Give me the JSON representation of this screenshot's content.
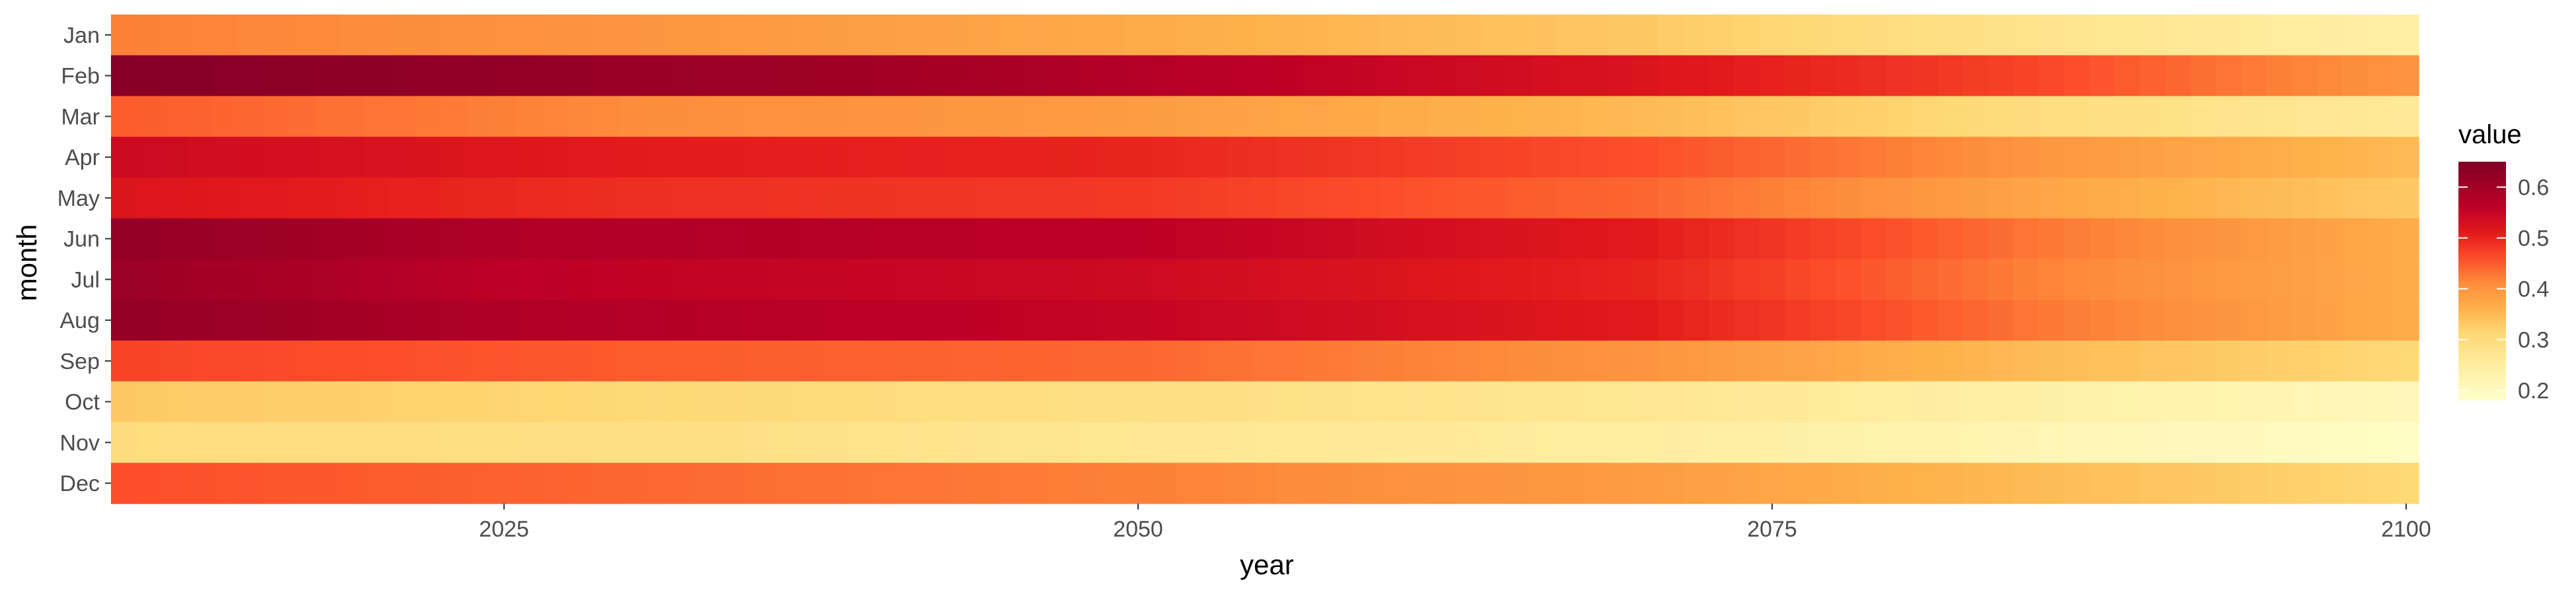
{
  "chart_data": {
    "type": "heatmap",
    "title": "",
    "xlabel": "year",
    "ylabel": "month",
    "x_start": 2010,
    "x_end": 2100,
    "xlim": [
      2009.5,
      2100.5
    ],
    "x_ticks": [
      2025,
      2050,
      2075,
      2100
    ],
    "months": [
      "Jan",
      "Feb",
      "Mar",
      "Apr",
      "May",
      "Jun",
      "Jul",
      "Aug",
      "Sep",
      "Oct",
      "Nov",
      "Dec"
    ],
    "row_value_profiles": [
      {
        "month": "Jan",
        "points": [
          [
            2010,
            0.42
          ],
          [
            2030,
            0.4
          ],
          [
            2050,
            0.37
          ],
          [
            2070,
            0.33
          ],
          [
            2085,
            0.28
          ],
          [
            2100,
            0.24
          ]
        ]
      },
      {
        "month": "Feb",
        "points": [
          [
            2010,
            0.64
          ],
          [
            2025,
            0.62
          ],
          [
            2040,
            0.6
          ],
          [
            2055,
            0.56
          ],
          [
            2070,
            0.52
          ],
          [
            2085,
            0.47
          ],
          [
            2095,
            0.42
          ],
          [
            2100,
            0.4
          ]
        ]
      },
      {
        "month": "Mar",
        "points": [
          [
            2010,
            0.45
          ],
          [
            2030,
            0.41
          ],
          [
            2050,
            0.39
          ],
          [
            2070,
            0.35
          ],
          [
            2085,
            0.3
          ],
          [
            2100,
            0.26
          ]
        ]
      },
      {
        "month": "Apr",
        "points": [
          [
            2010,
            0.54
          ],
          [
            2030,
            0.51
          ],
          [
            2050,
            0.5
          ],
          [
            2070,
            0.46
          ],
          [
            2085,
            0.4
          ],
          [
            2100,
            0.35
          ]
        ]
      },
      {
        "month": "May",
        "points": [
          [
            2010,
            0.52
          ],
          [
            2030,
            0.49
          ],
          [
            2050,
            0.48
          ],
          [
            2070,
            0.44
          ],
          [
            2085,
            0.38
          ],
          [
            2100,
            0.33
          ]
        ]
      },
      {
        "month": "Jun",
        "points": [
          [
            2010,
            0.62
          ],
          [
            2025,
            0.58
          ],
          [
            2050,
            0.56
          ],
          [
            2070,
            0.51
          ],
          [
            2085,
            0.43
          ],
          [
            2100,
            0.37
          ]
        ]
      },
      {
        "month": "Jul",
        "points": [
          [
            2010,
            0.61
          ],
          [
            2025,
            0.56
          ],
          [
            2050,
            0.54
          ],
          [
            2070,
            0.5
          ],
          [
            2085,
            0.42
          ],
          [
            2100,
            0.37
          ]
        ]
      },
      {
        "month": "Aug",
        "points": [
          [
            2010,
            0.62
          ],
          [
            2025,
            0.58
          ],
          [
            2050,
            0.55
          ],
          [
            2070,
            0.51
          ],
          [
            2085,
            0.43
          ],
          [
            2100,
            0.37
          ]
        ]
      },
      {
        "month": "Sep",
        "points": [
          [
            2010,
            0.47
          ],
          [
            2030,
            0.45
          ],
          [
            2050,
            0.44
          ],
          [
            2070,
            0.4
          ],
          [
            2085,
            0.35
          ],
          [
            2100,
            0.31
          ]
        ]
      },
      {
        "month": "Oct",
        "points": [
          [
            2010,
            0.33
          ],
          [
            2030,
            0.31
          ],
          [
            2050,
            0.29
          ],
          [
            2070,
            0.27
          ],
          [
            2085,
            0.24
          ],
          [
            2100,
            0.21
          ]
        ]
      },
      {
        "month": "Nov",
        "points": [
          [
            2010,
            0.3
          ],
          [
            2030,
            0.29
          ],
          [
            2050,
            0.27
          ],
          [
            2070,
            0.25
          ],
          [
            2085,
            0.22
          ],
          [
            2100,
            0.19
          ]
        ]
      },
      {
        "month": "Dec",
        "points": [
          [
            2010,
            0.46
          ],
          [
            2030,
            0.44
          ],
          [
            2050,
            0.42
          ],
          [
            2070,
            0.39
          ],
          [
            2085,
            0.35
          ],
          [
            2100,
            0.31
          ]
        ]
      }
    ],
    "legend": {
      "title": "value",
      "position": "right",
      "ticks": [
        0.2,
        0.3,
        0.4,
        0.5,
        0.6
      ],
      "tick_labels": [
        "0.2",
        "0.3",
        "0.4",
        "0.5",
        "0.6"
      ],
      "range": [
        0.18,
        0.65
      ]
    },
    "color_scale": {
      "name": "YlOrRd",
      "stops": [
        {
          "value": 0.18,
          "color": "#ffffcc"
        },
        {
          "value": 0.25,
          "color": "#ffeda0"
        },
        {
          "value": 0.31,
          "color": "#fed976"
        },
        {
          "value": 0.36,
          "color": "#feb24c"
        },
        {
          "value": 0.41,
          "color": "#fd8d3c"
        },
        {
          "value": 0.46,
          "color": "#fc4e2a"
        },
        {
          "value": 0.51,
          "color": "#e31a1c"
        },
        {
          "value": 0.56,
          "color": "#bd0026"
        },
        {
          "value": 0.65,
          "color": "#800026"
        }
      ]
    },
    "grid": false
  }
}
